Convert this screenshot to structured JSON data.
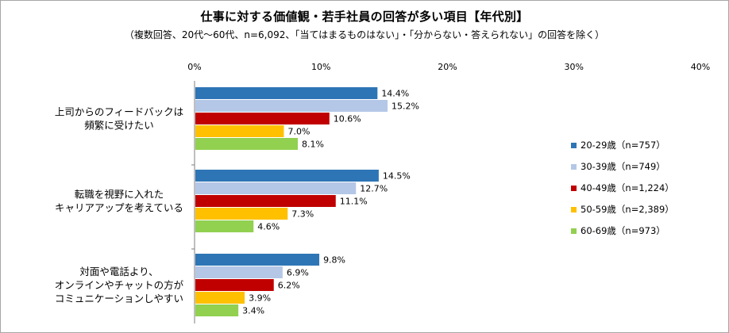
{
  "chart_data": {
    "type": "bar",
    "orientation": "horizontal",
    "title": "仕事に対する価値観・若手社員の回答が多い項目【年代別】",
    "subtitle": "（複数回答、20代～60代、n=6,092、「当てはまるものはない」・「分からない・答えられない」の回答を除く）",
    "xlim": [
      0,
      40
    ],
    "ticks": [
      "0%",
      "10%",
      "20%",
      "30%",
      "40%"
    ],
    "tick_values": [
      0,
      10,
      20,
      30,
      40
    ],
    "grid": false,
    "legend_position": "right",
    "categories": [
      [
        "上司からのフィードバックは",
        "頻繁に受けたい"
      ],
      [
        "転職を視野に入れた",
        "キャリアアップを考えている"
      ],
      [
        "対面や電話より、",
        "オンラインやチャットの方が",
        "コミュニケーションしやすい"
      ]
    ],
    "series": [
      {
        "name": "20-29歳（n=757）",
        "color": "#2e75b6",
        "values": [
          14.4,
          14.5,
          9.8
        ]
      },
      {
        "name": "30-39歳（n=749）",
        "color": "#b4c7e7",
        "values": [
          15.2,
          12.7,
          6.9
        ]
      },
      {
        "name": "40-49歳（n=1,224）",
        "color": "#c00000",
        "values": [
          10.6,
          11.1,
          6.2
        ]
      },
      {
        "name": "50-59歳（n=2,389）",
        "color": "#ffc000",
        "values": [
          7.0,
          7.3,
          3.9
        ]
      },
      {
        "name": "60-69歳（n=973）",
        "color": "#92d050",
        "values": [
          8.1,
          4.6,
          3.4
        ]
      }
    ]
  }
}
